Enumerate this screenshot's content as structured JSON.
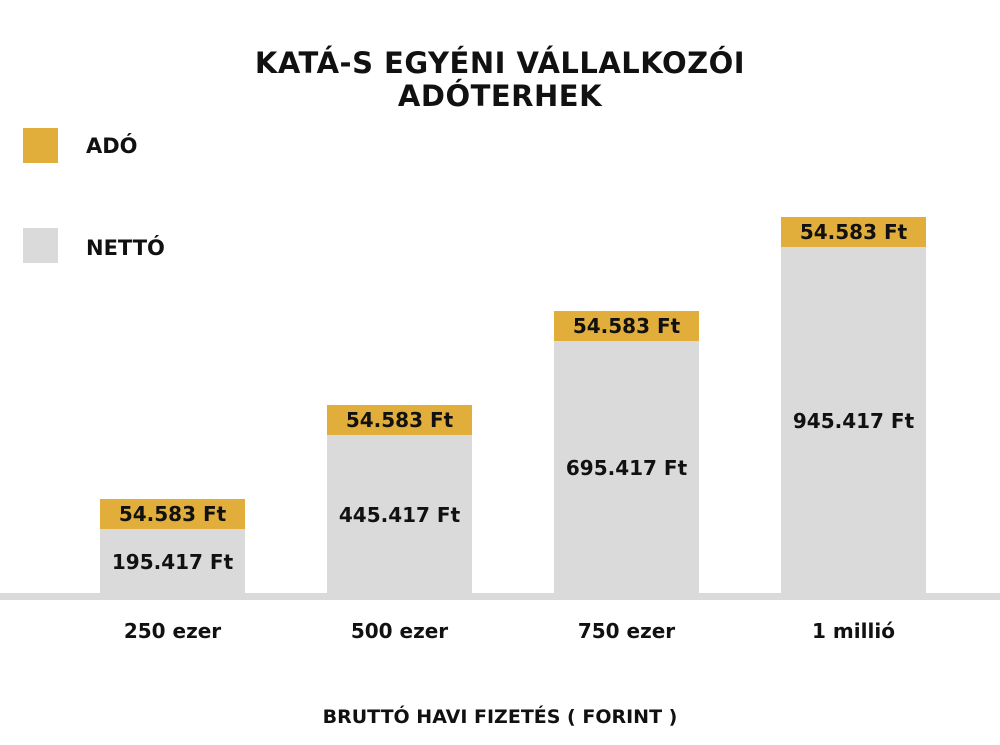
{
  "chart_data": {
    "type": "bar",
    "stacked": true,
    "title_lines": [
      "KATÁ-S EGYÉNI VÁLLALKOZÓI",
      "ADÓTERHEK"
    ],
    "categories": [
      "250 ezer",
      "500 ezer",
      "750 ezer",
      "1 millió"
    ],
    "series": [
      {
        "name": "NETTÓ",
        "values": [
          195417,
          445417,
          695417,
          945417
        ],
        "labels": [
          "195.417 Ft",
          "445.417 Ft",
          "695.417 Ft",
          "945.417 Ft"
        ],
        "color": "#dadada"
      },
      {
        "name": "ADÓ",
        "values": [
          54583,
          54583,
          54583,
          54583
        ],
        "labels": [
          "54.583 Ft",
          "54.583 Ft",
          "54.583 Ft",
          "54.583 Ft"
        ],
        "color": "#e2ae3b"
      }
    ],
    "xlabel": "BRUTTÓ HAVI FIZETÉS ( FORINT )",
    "ylabel": "",
    "ylim": [
      0,
      1000000
    ],
    "legend_position": "top-left",
    "grid": false
  }
}
